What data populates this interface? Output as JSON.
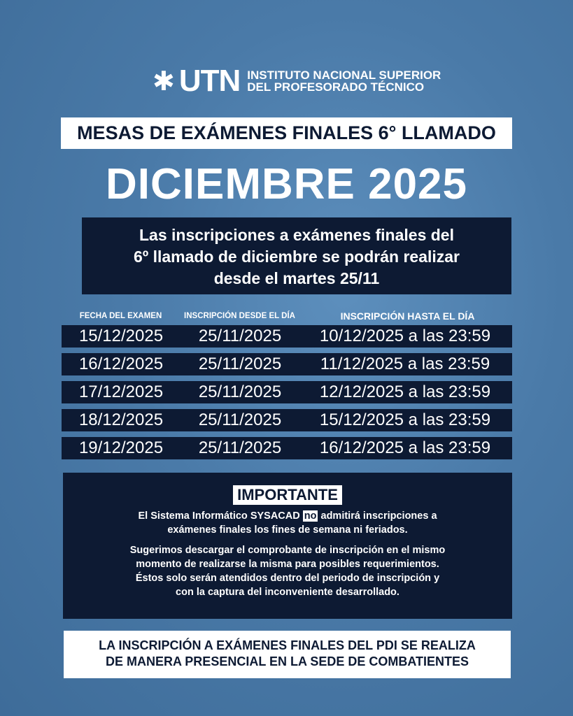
{
  "logo": {
    "mark": "✱",
    "name": "UTN",
    "line1": "INSTITUTO NACIONAL SUPERIOR",
    "line2": "DEL PROFESORADO TÉCNICO"
  },
  "title": "MESAS DE EXÁMENES FINALES 6° LLAMADO",
  "month": "DICIEMBRE 2025",
  "info": {
    "line1": "Las inscripciones a exámenes finales del",
    "line2": "6º llamado de diciembre se podrán realizar",
    "line3": "desde el martes 25/11"
  },
  "table": {
    "headers": [
      "FECHA DEL EXAMEN",
      "INSCRIPCIÓN DESDE EL DÍA",
      "INSCRIPCIÓN HASTA EL DÍA"
    ],
    "rows": [
      [
        "15/12/2025",
        "25/11/2025",
        "10/12/2025 a las 23:59"
      ],
      [
        "16/12/2025",
        "25/11/2025",
        "11/12/2025 a las 23:59"
      ],
      [
        "17/12/2025",
        "25/11/2025",
        "12/12/2025 a las 23:59"
      ],
      [
        "18/12/2025",
        "25/11/2025",
        "15/12/2025 a las 23:59"
      ],
      [
        "19/12/2025",
        "25/11/2025",
        "16/12/2025 a las 23:59"
      ]
    ]
  },
  "important": {
    "title": "IMPORTANTE",
    "p1a": "El Sistema Informático SYSACAD",
    "p1no": "no",
    "p1b": "admitirá inscripciones a",
    "p1c": "exámenes finales los fines de semana ni feriados.",
    "p2": [
      "Sugerimos descargar el comprobante de inscripción en el mismo",
      "momento de realizarse la misma para posibles requerimientos.",
      "Éstos solo serán atendidos dentro del periodo de inscripción y",
      "con la captura del inconveniente desarrollado."
    ]
  },
  "bottom": {
    "line1": "LA INSCRIPCIÓN A EXÁMENES FINALES DEL PDI SE REALIZA",
    "line2": "DE MANERA PRESENCIAL EN LA SEDE DE COMBATIENTES"
  },
  "colors": {
    "background": "#4a7aa8",
    "navy": "#0d1a33",
    "white": "#ffffff"
  }
}
